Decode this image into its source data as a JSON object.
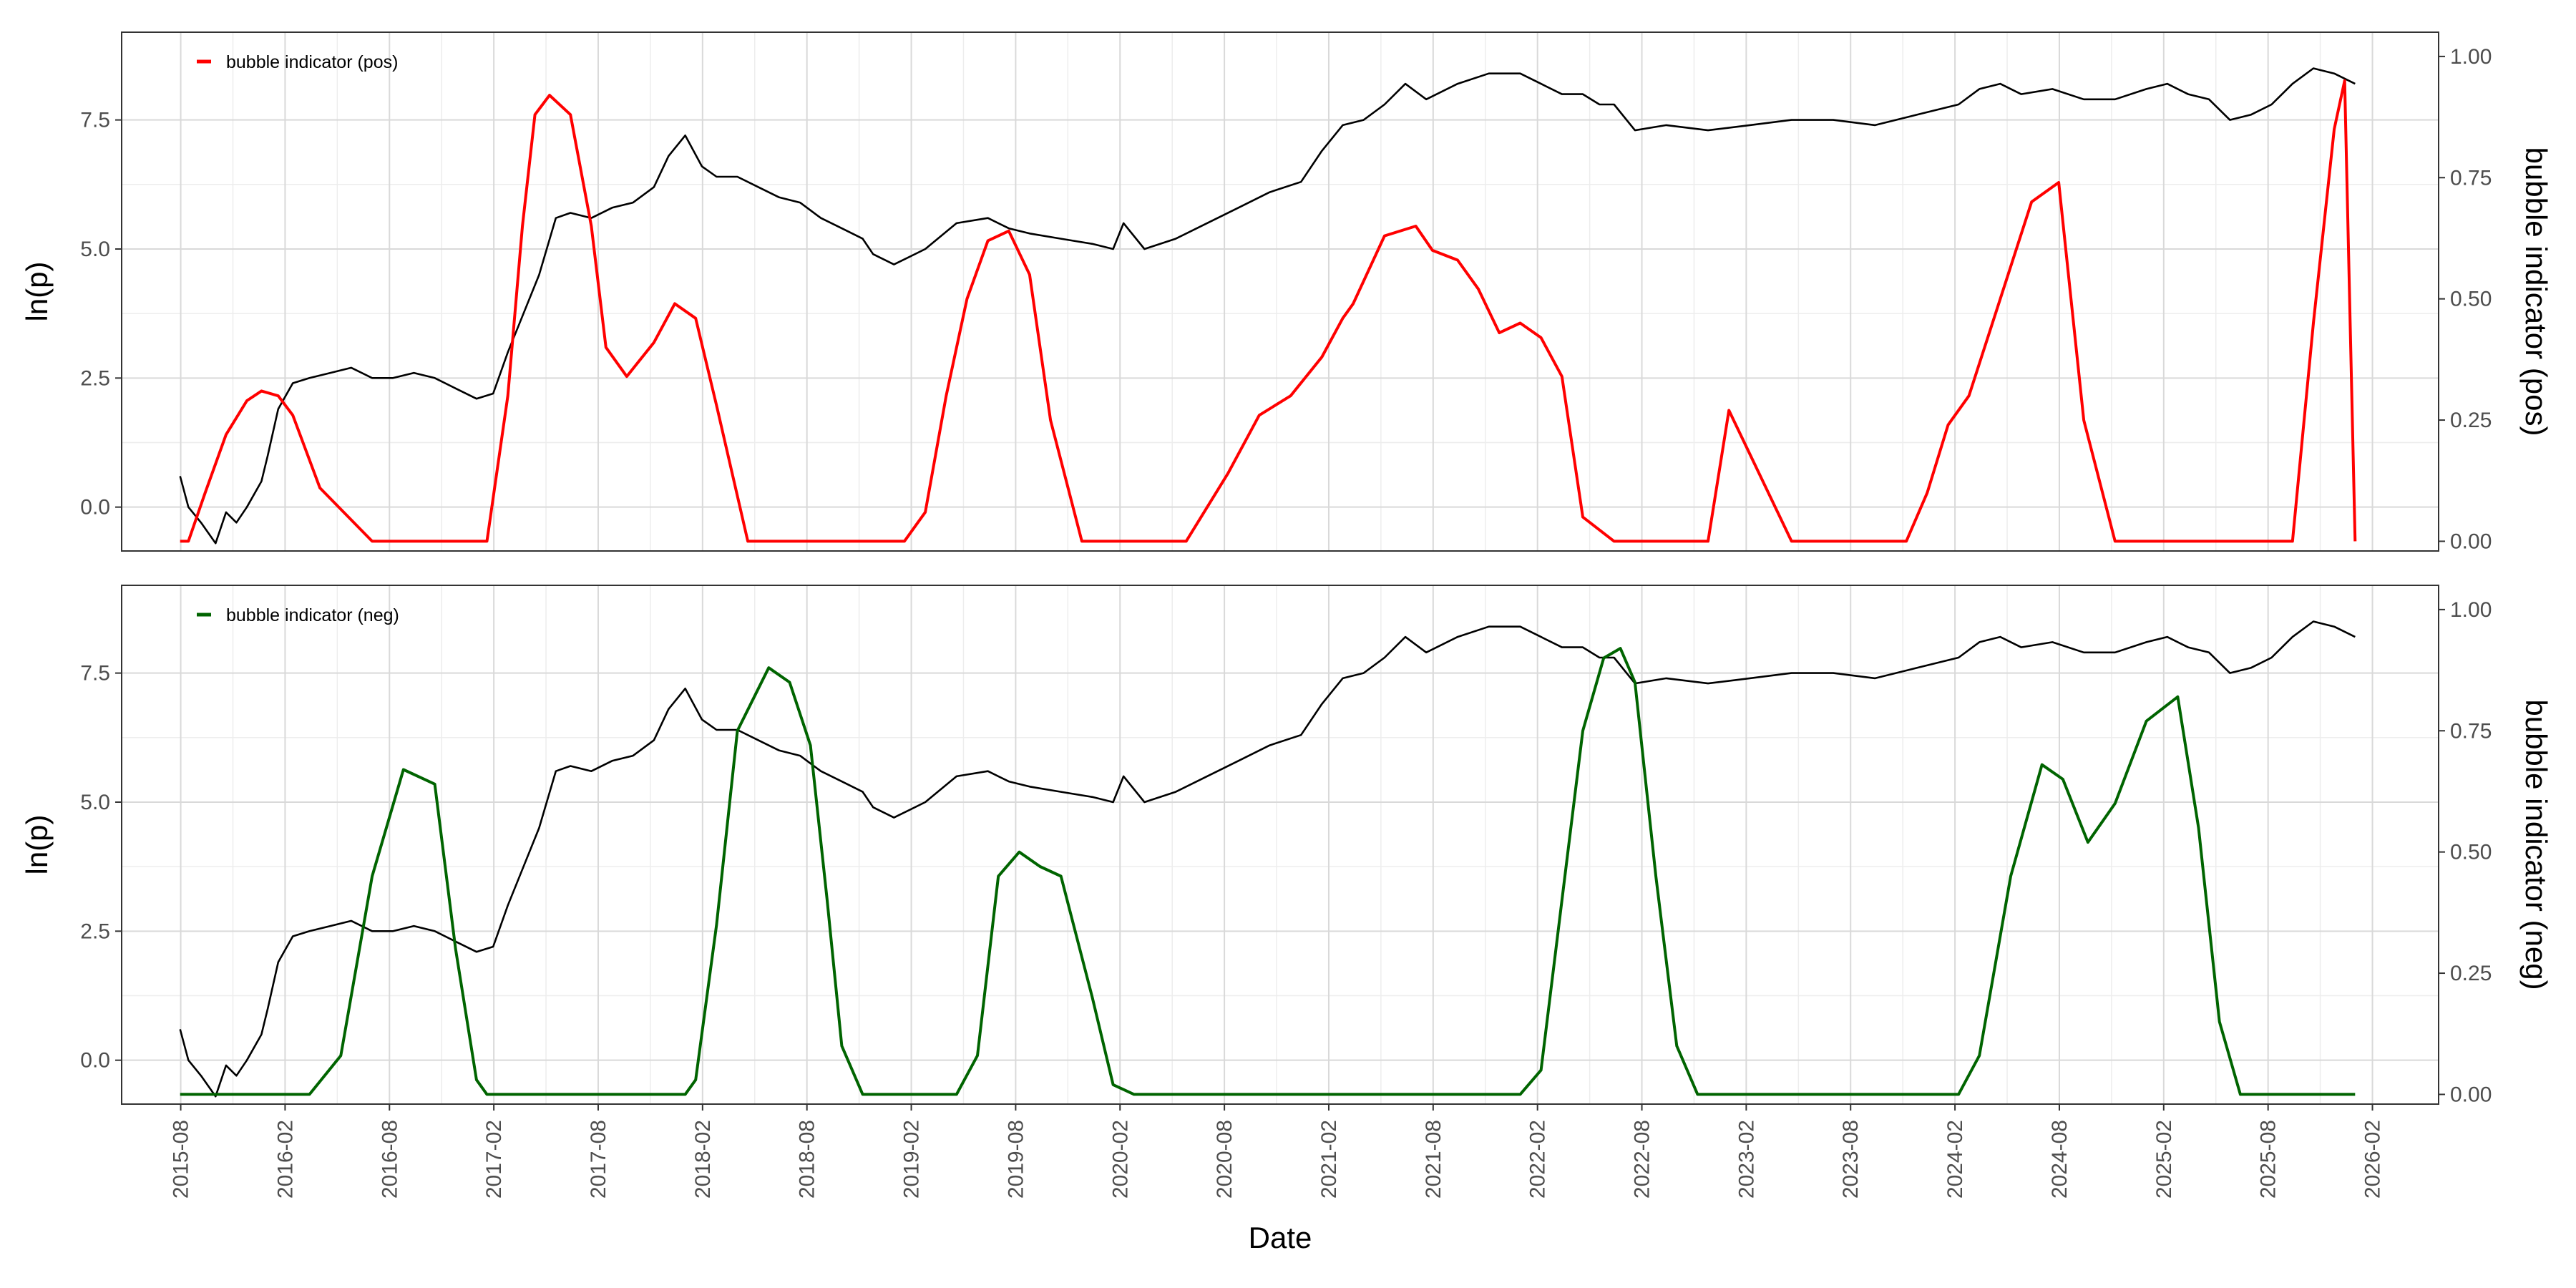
{
  "chart_data": [
    {
      "type": "line",
      "panel": "top",
      "xlabel": "Date",
      "ylabel": "ln(p)",
      "y2label": "bubble indicator (pos)",
      "ylim": [
        -0.85,
        9.2
      ],
      "y2lim": [
        -0.02,
        1.05
      ],
      "yticks": [
        0.0,
        2.5,
        5.0,
        7.5
      ],
      "ytick_labels": [
        "0.0",
        "2.5",
        "5.0",
        "7.5"
      ],
      "y2ticks": [
        0.0,
        0.25,
        0.5,
        0.75,
        1.0
      ],
      "y2tick_labels": [
        "0.00",
        "0.25",
        "0.50",
        "0.75",
        "1.00"
      ],
      "grid": true,
      "legend": {
        "position": "top-left",
        "entries": [
          {
            "label": "bubble indicator (pos)",
            "color": "#ff0000"
          }
        ]
      },
      "series": [
        {
          "name": "ln(p)",
          "axis": "left",
          "color": "#000000",
          "x": [
            2015.58,
            2015.62,
            2015.68,
            2015.75,
            2015.8,
            2015.85,
            2015.9,
            2015.97,
            2016.0,
            2016.05,
            2016.12,
            2016.2,
            2016.3,
            2016.4,
            2016.5,
            2016.6,
            2016.7,
            2016.8,
            2016.9,
            2017.0,
            2017.08,
            2017.15,
            2017.22,
            2017.3,
            2017.38,
            2017.45,
            2017.55,
            2017.65,
            2017.75,
            2017.85,
            2017.92,
            2018.0,
            2018.08,
            2018.15,
            2018.25,
            2018.35,
            2018.45,
            2018.55,
            2018.65,
            2018.75,
            2018.85,
            2018.9,
            2019.0,
            2019.15,
            2019.3,
            2019.45,
            2019.55,
            2019.65,
            2019.8,
            2019.95,
            2020.05,
            2020.1,
            2020.2,
            2020.35,
            2020.5,
            2020.65,
            2020.8,
            2020.95,
            2021.05,
            2021.15,
            2021.25,
            2021.35,
            2021.45,
            2021.55,
            2021.7,
            2021.85,
            2022.0,
            2022.1,
            2022.2,
            2022.3,
            2022.38,
            2022.45,
            2022.55,
            2022.7,
            2022.9,
            2023.1,
            2023.3,
            2023.5,
            2023.7,
            2023.9,
            2024.1,
            2024.2,
            2024.3,
            2024.4,
            2024.55,
            2024.7,
            2024.85,
            2025.0,
            2025.1,
            2025.2,
            2025.3,
            2025.4,
            2025.5,
            2025.6,
            2025.7,
            2025.8,
            2025.9,
            2026.0
          ],
          "values": [
            0.6,
            0.0,
            -0.3,
            -0.7,
            -0.1,
            -0.3,
            0.0,
            0.5,
            1.0,
            1.9,
            2.4,
            2.5,
            2.6,
            2.7,
            2.5,
            2.5,
            2.6,
            2.5,
            2.3,
            2.1,
            2.2,
            3.0,
            3.7,
            4.5,
            5.6,
            5.7,
            5.6,
            5.8,
            5.9,
            6.2,
            6.8,
            7.2,
            6.6,
            6.4,
            6.4,
            6.2,
            6.0,
            5.9,
            5.6,
            5.4,
            5.2,
            4.9,
            4.7,
            5.0,
            5.5,
            5.6,
            5.4,
            5.3,
            5.2,
            5.1,
            5.0,
            5.5,
            5.0,
            5.2,
            5.5,
            5.8,
            6.1,
            6.3,
            6.9,
            7.4,
            7.5,
            7.8,
            8.2,
            7.9,
            8.2,
            8.4,
            8.4,
            8.2,
            8.0,
            8.0,
            7.8,
            7.8,
            7.3,
            7.4,
            7.3,
            7.4,
            7.5,
            7.5,
            7.4,
            7.6,
            7.8,
            8.1,
            8.2,
            8.0,
            8.1,
            7.9,
            7.9,
            8.1,
            8.2,
            8.0,
            7.9,
            7.5,
            7.6,
            7.8,
            8.2,
            8.5,
            8.4,
            8.2
          ]
        },
        {
          "name": "bubble indicator (pos)",
          "axis": "right",
          "color": "#ff0000",
          "x": [
            2015.58,
            2015.62,
            2015.7,
            2015.8,
            2015.9,
            2015.97,
            2016.05,
            2016.12,
            2016.25,
            2016.5,
            2016.7,
            2016.85,
            2016.95,
            2017.05,
            2017.15,
            2017.22,
            2017.28,
            2017.35,
            2017.45,
            2017.55,
            2017.62,
            2017.72,
            2017.85,
            2017.95,
            2018.05,
            2018.15,
            2018.3,
            2018.55,
            2018.75,
            2018.85,
            2018.95,
            2019.05,
            2019.15,
            2019.25,
            2019.35,
            2019.45,
            2019.55,
            2019.65,
            2019.75,
            2019.9,
            2020.0,
            2020.1,
            2020.2,
            2020.4,
            2020.6,
            2020.75,
            2020.9,
            2021.05,
            2021.15,
            2021.2,
            2021.35,
            2021.5,
            2021.58,
            2021.7,
            2021.8,
            2021.9,
            2022.0,
            2022.1,
            2022.2,
            2022.3,
            2022.45,
            2022.55,
            2022.68,
            2022.75,
            2022.83,
            2022.9,
            2023.0,
            2023.1,
            2023.3,
            2023.6,
            2023.72,
            2023.85,
            2023.95,
            2024.05,
            2024.15,
            2024.3,
            2024.45,
            2024.58,
            2024.7,
            2024.85,
            2025.0,
            2025.15,
            2025.3,
            2025.4,
            2025.5,
            2025.6,
            2025.7,
            2025.8,
            2025.9,
            2025.95,
            2026.0
          ],
          "values": [
            0.0,
            0.0,
            0.1,
            0.22,
            0.29,
            0.31,
            0.3,
            0.26,
            0.11,
            0.0,
            0.0,
            0.0,
            0.0,
            0.0,
            0.3,
            0.65,
            0.88,
            0.92,
            0.88,
            0.65,
            0.4,
            0.34,
            0.41,
            0.49,
            0.46,
            0.28,
            0.0,
            0.0,
            0.0,
            0.0,
            0.0,
            0.0,
            0.06,
            0.3,
            0.5,
            0.62,
            0.64,
            0.55,
            0.25,
            0.0,
            0.0,
            0.0,
            0.0,
            0.0,
            0.14,
            0.26,
            0.3,
            0.38,
            0.46,
            0.49,
            0.63,
            0.65,
            0.6,
            0.58,
            0.52,
            0.43,
            0.45,
            0.42,
            0.34,
            0.05,
            0.0,
            0.0,
            0.0,
            0.0,
            0.0,
            0.0,
            0.27,
            0.18,
            0.0,
            0.0,
            0.0,
            0.0,
            0.1,
            0.24,
            0.3,
            0.5,
            0.7,
            0.74,
            0.25,
            0.0,
            0.0,
            0.0,
            0.0,
            0.0,
            0.0,
            0.0,
            0.0,
            0.45,
            0.85,
            0.95,
            0.0
          ]
        }
      ]
    },
    {
      "type": "line",
      "panel": "bottom",
      "xlabel": "Date",
      "ylabel": "ln(p)",
      "y2label": "bubble indicator (neg)",
      "ylim": [
        -0.85,
        9.2
      ],
      "y2lim": [
        -0.02,
        1.05
      ],
      "yticks": [
        0.0,
        2.5,
        5.0,
        7.5
      ],
      "ytick_labels": [
        "0.0",
        "2.5",
        "5.0",
        "7.5"
      ],
      "y2ticks": [
        0.0,
        0.25,
        0.5,
        0.75,
        1.0
      ],
      "y2tick_labels": [
        "0.00",
        "0.25",
        "0.50",
        "0.75",
        "1.00"
      ],
      "grid": true,
      "legend": {
        "position": "top-left",
        "entries": [
          {
            "label": "bubble indicator (neg)",
            "color": "#006400"
          }
        ]
      },
      "series": [
        {
          "name": "ln(p)",
          "axis": "left",
          "color": "#000000",
          "x": [
            2015.58,
            2015.62,
            2015.68,
            2015.75,
            2015.8,
            2015.85,
            2015.9,
            2015.97,
            2016.0,
            2016.05,
            2016.12,
            2016.2,
            2016.3,
            2016.4,
            2016.5,
            2016.6,
            2016.7,
            2016.8,
            2016.9,
            2017.0,
            2017.08,
            2017.15,
            2017.22,
            2017.3,
            2017.38,
            2017.45,
            2017.55,
            2017.65,
            2017.75,
            2017.85,
            2017.92,
            2018.0,
            2018.08,
            2018.15,
            2018.25,
            2018.35,
            2018.45,
            2018.55,
            2018.65,
            2018.75,
            2018.85,
            2018.9,
            2019.0,
            2019.15,
            2019.3,
            2019.45,
            2019.55,
            2019.65,
            2019.8,
            2019.95,
            2020.05,
            2020.1,
            2020.2,
            2020.35,
            2020.5,
            2020.65,
            2020.8,
            2020.95,
            2021.05,
            2021.15,
            2021.25,
            2021.35,
            2021.45,
            2021.55,
            2021.7,
            2021.85,
            2022.0,
            2022.1,
            2022.2,
            2022.3,
            2022.38,
            2022.45,
            2022.55,
            2022.7,
            2022.9,
            2023.1,
            2023.3,
            2023.5,
            2023.7,
            2023.9,
            2024.1,
            2024.2,
            2024.3,
            2024.4,
            2024.55,
            2024.7,
            2024.85,
            2025.0,
            2025.1,
            2025.2,
            2025.3,
            2025.4,
            2025.5,
            2025.6,
            2025.7,
            2025.8,
            2025.9,
            2026.0
          ],
          "values": [
            0.6,
            0.0,
            -0.3,
            -0.7,
            -0.1,
            -0.3,
            0.0,
            0.5,
            1.0,
            1.9,
            2.4,
            2.5,
            2.6,
            2.7,
            2.5,
            2.5,
            2.6,
            2.5,
            2.3,
            2.1,
            2.2,
            3.0,
            3.7,
            4.5,
            5.6,
            5.7,
            5.6,
            5.8,
            5.9,
            6.2,
            6.8,
            7.2,
            6.6,
            6.4,
            6.4,
            6.2,
            6.0,
            5.9,
            5.6,
            5.4,
            5.2,
            4.9,
            4.7,
            5.0,
            5.5,
            5.6,
            5.4,
            5.3,
            5.2,
            5.1,
            5.0,
            5.5,
            5.0,
            5.2,
            5.5,
            5.8,
            6.1,
            6.3,
            6.9,
            7.4,
            7.5,
            7.8,
            8.2,
            7.9,
            8.2,
            8.4,
            8.4,
            8.2,
            8.0,
            8.0,
            7.8,
            7.8,
            7.3,
            7.4,
            7.3,
            7.4,
            7.5,
            7.5,
            7.4,
            7.6,
            7.8,
            8.1,
            8.2,
            8.0,
            8.1,
            7.9,
            7.9,
            8.1,
            8.2,
            8.0,
            7.9,
            7.5,
            7.6,
            7.8,
            8.2,
            8.5,
            8.4,
            8.2
          ]
        },
        {
          "name": "bubble indicator (neg)",
          "axis": "right",
          "color": "#006400",
          "x": [
            2015.58,
            2016.2,
            2016.35,
            2016.5,
            2016.65,
            2016.8,
            2016.9,
            2017.0,
            2017.05,
            2017.5,
            2018.0,
            2018.05,
            2018.15,
            2018.25,
            2018.4,
            2018.5,
            2018.6,
            2018.68,
            2018.75,
            2018.85,
            2019.3,
            2019.4,
            2019.5,
            2019.6,
            2019.7,
            2019.8,
            2019.95,
            2020.05,
            2020.15,
            2022.0,
            2022.1,
            2022.2,
            2022.3,
            2022.4,
            2022.48,
            2022.55,
            2022.65,
            2022.75,
            2022.85,
            2024.1,
            2024.2,
            2024.35,
            2024.5,
            2024.6,
            2024.72,
            2024.85,
            2025.0,
            2025.15,
            2025.25,
            2025.35,
            2025.45,
            2026.0
          ],
          "values": [
            0.0,
            0.0,
            0.08,
            0.45,
            0.67,
            0.64,
            0.3,
            0.03,
            0.0,
            0.0,
            0.0,
            0.03,
            0.35,
            0.75,
            0.88,
            0.85,
            0.72,
            0.4,
            0.1,
            0.0,
            0.0,
            0.08,
            0.45,
            0.5,
            0.47,
            0.45,
            0.2,
            0.02,
            0.0,
            0.0,
            0.05,
            0.4,
            0.75,
            0.9,
            0.92,
            0.85,
            0.45,
            0.1,
            0.0,
            0.0,
            0.08,
            0.45,
            0.68,
            0.65,
            0.52,
            0.6,
            0.77,
            0.82,
            0.55,
            0.15,
            0.0,
            0.0
          ]
        }
      ]
    }
  ],
  "x_axis": {
    "label": "Date",
    "range": [
      2015.3,
      2026.4
    ],
    "tick_positions": [
      2015.583,
      2016.083,
      2016.583,
      2017.083,
      2017.583,
      2018.083,
      2018.583,
      2019.083,
      2019.583,
      2020.083,
      2020.583,
      2021.083,
      2021.583,
      2022.083,
      2022.583,
      2023.083,
      2023.583,
      2024.083,
      2024.583,
      2025.083,
      2025.583,
      2026.083
    ],
    "tick_labels": [
      "2015-08",
      "2016-02",
      "2016-08",
      "2017-02",
      "2017-08",
      "2018-02",
      "2018-08",
      "2019-02",
      "2019-08",
      "2020-02",
      "2020-08",
      "2021-02",
      "2021-08",
      "2022-02",
      "2022-08",
      "2023-02",
      "2023-08",
      "2024-02",
      "2024-08",
      "2025-02",
      "2025-08",
      "2026-02"
    ]
  },
  "colors": {
    "price_line": "#000000",
    "pos_indicator": "#ff0000",
    "neg_indicator": "#006400",
    "grid_major": "#d9d9d9",
    "grid_minor": "#ededed",
    "panel_border": "#333333"
  }
}
